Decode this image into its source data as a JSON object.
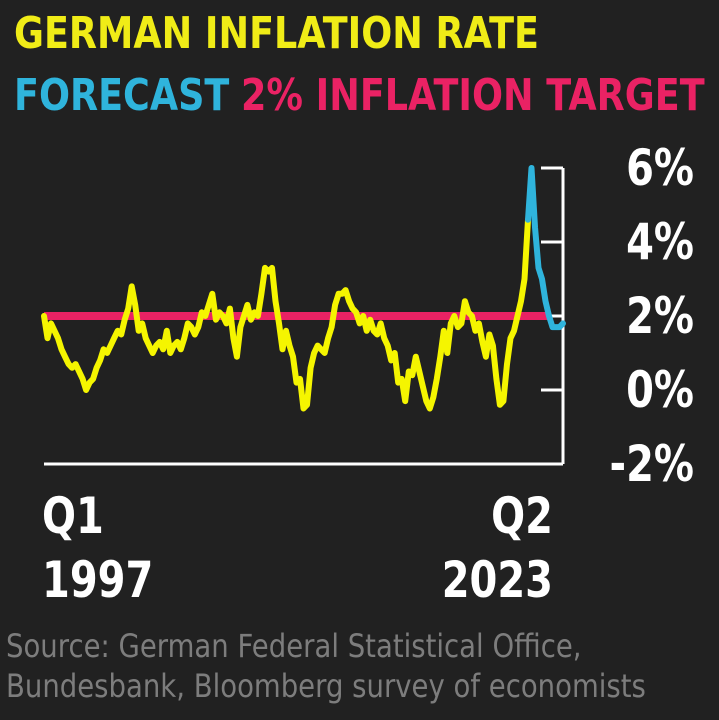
{
  "chart_data": {
    "type": "line",
    "title": "GERMAN INFLATION RATE",
    "legend": [
      {
        "label": "FORECAST",
        "color": "#2fb4dc"
      },
      {
        "label": "2% INFLATION TARGET",
        "color": "#ea2264"
      }
    ],
    "ylim": [
      -2,
      6
    ],
    "yticks": [
      "6%",
      "4%",
      "2%",
      "0%",
      "-2%"
    ],
    "ytick_values": [
      6,
      4,
      2,
      0,
      -2
    ],
    "x_start_label": [
      "Q1",
      "1997"
    ],
    "x_end_label": [
      "Q2",
      "2023"
    ],
    "target": 2,
    "series": [
      {
        "color": "#f5f500",
        "values": [
          2.0,
          1.4,
          1.8,
          1.6,
          1.4,
          1.1,
          0.9,
          0.7,
          0.6,
          0.7,
          0.5,
          0.3,
          0.0,
          0.2,
          0.3,
          0.6,
          0.8,
          1.1,
          1.0,
          1.2,
          1.4,
          1.6,
          1.5,
          1.9,
          2.2,
          2.8,
          2.3,
          1.6,
          1.8,
          1.4,
          1.2,
          1.0,
          1.2,
          1.3,
          1.1,
          1.6,
          1.0,
          1.2,
          1.3,
          1.1,
          1.4,
          1.8,
          1.7,
          1.5,
          1.7,
          2.1,
          2.0,
          2.3,
          2.6,
          1.9,
          2.1,
          2.0,
          1.8,
          2.2,
          1.4,
          0.9,
          1.7,
          2.0,
          2.3,
          1.9,
          2.1,
          2.0,
          2.6,
          3.3,
          3.2,
          3.3,
          2.4,
          1.8,
          1.1,
          1.6,
          1.2,
          0.9,
          0.2,
          0.3,
          -0.5,
          -0.4,
          0.6,
          1.0,
          1.2,
          1.1,
          1.0,
          1.4,
          1.7,
          2.3,
          2.6,
          2.6,
          2.7,
          2.4,
          2.2,
          2.1,
          1.8,
          2.0,
          1.6,
          1.9,
          1.6,
          1.5,
          1.8,
          1.4,
          1.2,
          0.8,
          1.0,
          0.2,
          0.3,
          -0.3,
          0.5,
          0.4,
          0.9,
          0.5,
          0.1,
          -0.3,
          -0.5,
          -0.2,
          0.3,
          0.9,
          1.6,
          1.0,
          1.8,
          2.0,
          1.7,
          1.8,
          2.4,
          2.1,
          2.0,
          1.6,
          1.8,
          1.3,
          0.9,
          1.5,
          1.2,
          0.3,
          -0.4,
          -0.3,
          0.7,
          1.4,
          1.6,
          2.0,
          2.4,
          3.0,
          4.6
        ]
      },
      {
        "color": "#2fb4dc",
        "values": [
          4.6,
          6.0,
          4.4,
          3.3,
          3.0,
          2.4,
          2.0,
          1.7,
          1.7,
          1.7,
          1.8
        ]
      }
    ]
  },
  "source_lines": [
    "Source: German Federal Statistical Office,",
    "Bundesbank, Bloomberg survey of economists"
  ]
}
